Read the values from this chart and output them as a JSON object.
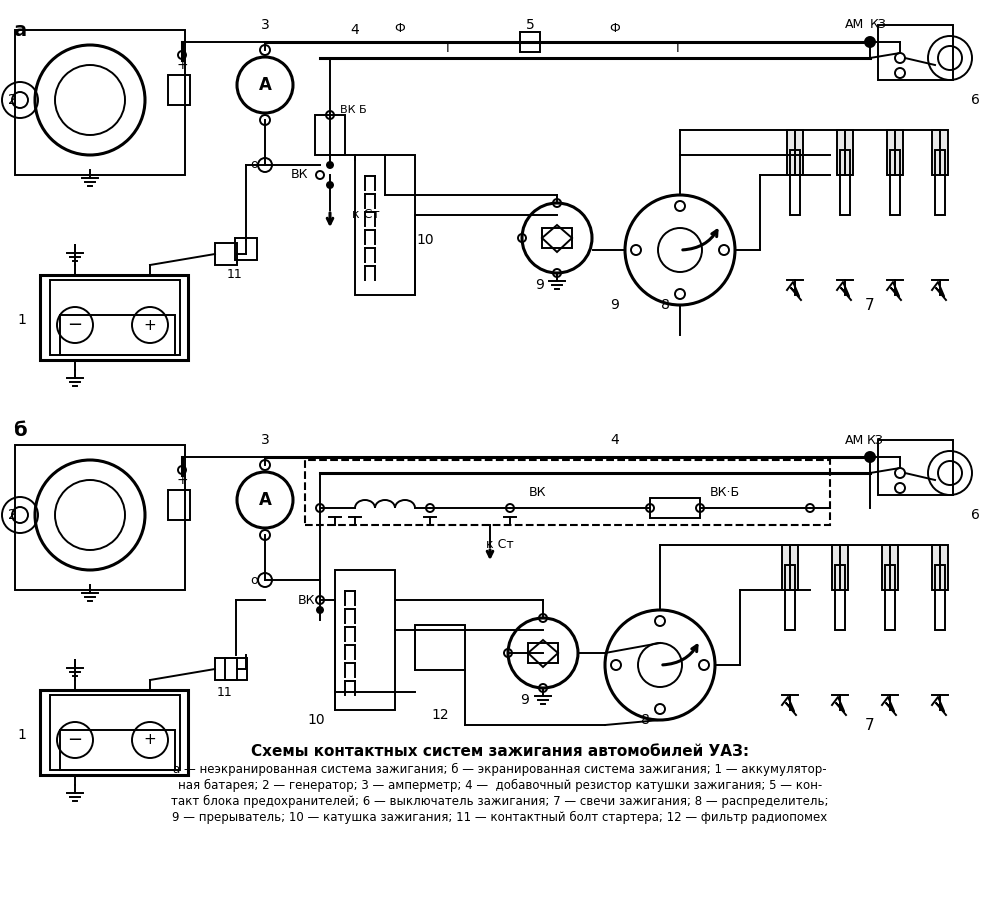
{
  "title": "Схемы контактных систем зажигания автомобилей УАЗ:",
  "caption_line1": "а — неэкранированная система зажигания; б — экранированная система зажигания; 1 — аккумулятор-",
  "caption_line2": "ная батарея; 2 — генератор; 3 — амперметр; 4 —  добавочный резистор катушки зажигания; 5 — кон-",
  "caption_line3": "такт блока предохранителей; 6 — выключатель зажигания; 7 — свечи зажигания; 8 — распределитель;",
  "caption_line4": "9 — прерыватель; 10 — катушка зажигания; 11 — контактный болт стартера; 12 — фильтр радиопомех",
  "bg_color": "#ffffff",
  "lc": "#000000"
}
